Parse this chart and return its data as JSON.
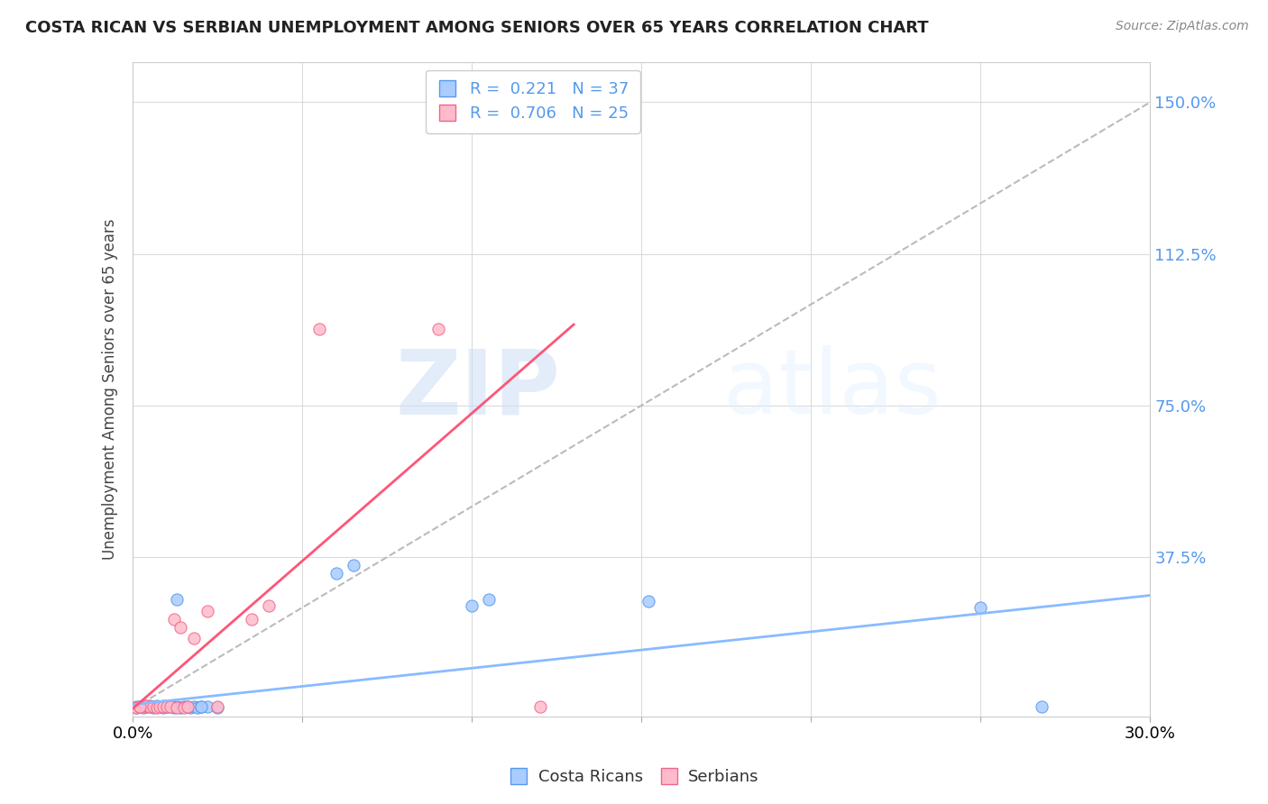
{
  "title": "COSTA RICAN VS SERBIAN UNEMPLOYMENT AMONG SENIORS OVER 65 YEARS CORRELATION CHART",
  "source": "Source: ZipAtlas.com",
  "ylabel": "Unemployment Among Seniors over 65 years",
  "ytick_labels": [
    "37.5%",
    "75.0%",
    "112.5%",
    "150.0%"
  ],
  "ytick_values": [
    0.375,
    0.75,
    1.125,
    1.5
  ],
  "xlim": [
    0.0,
    0.3
  ],
  "ylim": [
    -0.02,
    1.6
  ],
  "cr_color": "#aaccff",
  "cr_edge_color": "#5599ee",
  "sr_color": "#ffbbcc",
  "sr_edge_color": "#ee6688",
  "cr_line_color": "#88bbff",
  "sr_line_color": "#ff5577",
  "diag_color": "#bbbbbb",
  "watermark_zip": "ZIP",
  "watermark_atlas": "atlas",
  "legend_cr_label": "R =  0.221   N = 37",
  "legend_sr_label": "R =  0.706   N = 25",
  "legend_bottom_cr": "Costa Ricans",
  "legend_bottom_sr": "Serbians",
  "right_tick_color": "#5599ee",
  "cr_scatter_x": [
    0.001,
    0.002,
    0.003,
    0.004,
    0.005,
    0.006,
    0.007,
    0.008,
    0.009,
    0.01,
    0.011,
    0.012,
    0.013,
    0.014,
    0.015,
    0.016,
    0.017,
    0.018,
    0.019,
    0.02,
    0.022,
    0.025,
    0.003,
    0.005,
    0.007,
    0.009,
    0.011,
    0.06,
    0.065,
    0.1,
    0.105,
    0.152,
    0.25,
    0.268,
    0.013,
    0.02,
    0.001
  ],
  "cr_scatter_y": [
    0.003,
    0.004,
    0.003,
    0.005,
    0.004,
    0.003,
    0.005,
    0.004,
    0.003,
    0.004,
    0.005,
    0.003,
    0.004,
    0.003,
    0.005,
    0.004,
    0.003,
    0.004,
    0.003,
    0.005,
    0.004,
    0.003,
    0.006,
    0.006,
    0.006,
    0.006,
    0.006,
    0.335,
    0.355,
    0.255,
    0.27,
    0.265,
    0.25,
    0.005,
    0.27,
    0.005,
    0.005
  ],
  "sr_scatter_x": [
    0.001,
    0.002,
    0.003,
    0.004,
    0.005,
    0.006,
    0.007,
    0.008,
    0.009,
    0.01,
    0.011,
    0.012,
    0.013,
    0.014,
    0.015,
    0.016,
    0.018,
    0.022,
    0.025,
    0.035,
    0.04,
    0.055,
    0.09,
    0.12,
    0.002
  ],
  "sr_scatter_y": [
    0.003,
    0.005,
    0.004,
    0.006,
    0.005,
    0.004,
    0.003,
    0.005,
    0.004,
    0.005,
    0.004,
    0.22,
    0.003,
    0.2,
    0.003,
    0.005,
    0.175,
    0.24,
    0.005,
    0.22,
    0.255,
    0.94,
    0.94,
    0.005,
    0.004
  ],
  "cr_line_x": [
    0.0,
    0.3
  ],
  "cr_line_y": [
    0.01,
    0.28
  ],
  "sr_line_x": [
    0.0,
    0.13
  ],
  "sr_line_y": [
    0.0,
    0.95
  ],
  "diag_line_x": [
    0.0,
    0.3
  ],
  "diag_line_y": [
    0.0,
    1.5
  ]
}
